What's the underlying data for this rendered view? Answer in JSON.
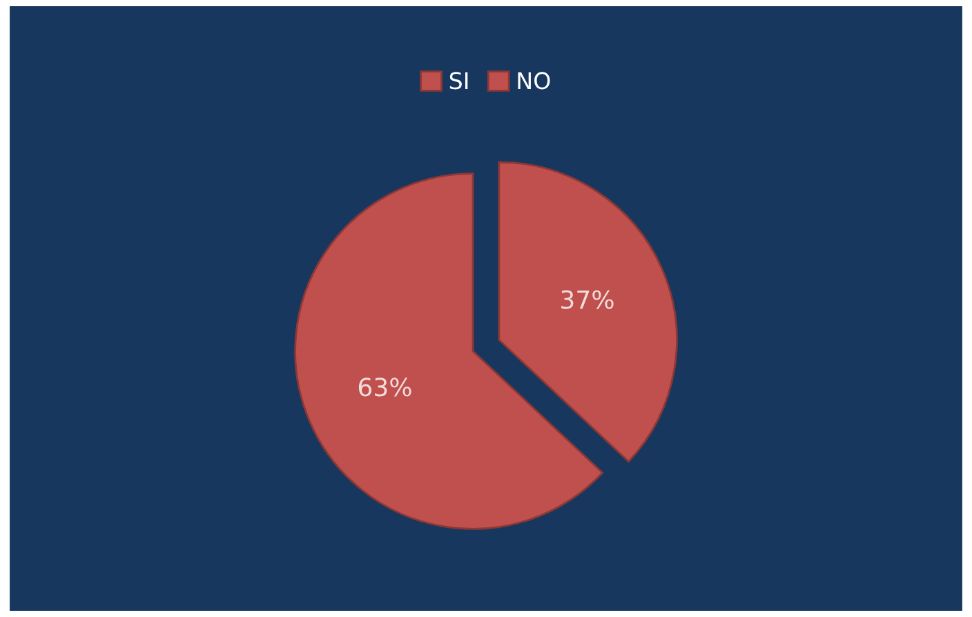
{
  "chart_data": {
    "type": "pie",
    "categories": [
      "SI",
      "NO"
    ],
    "values": [
      37,
      63
    ],
    "colors": [
      "#c0504d",
      "#c0504d"
    ],
    "value_labels": [
      "37%",
      "63%"
    ],
    "legend": "top"
  }
}
